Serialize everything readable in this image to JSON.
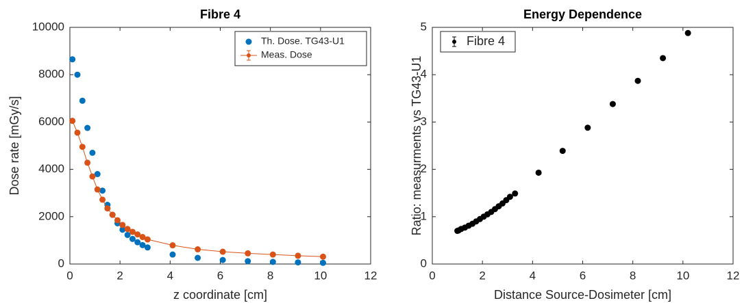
{
  "chart_data": [
    {
      "type": "scatter",
      "title": "Fibre 4",
      "xlabel": "z coordinate [cm]",
      "ylabel": "Dose rate [mGy/s]",
      "xlim": [
        0,
        12
      ],
      "xticks": [
        0,
        2,
        4,
        6,
        8,
        10,
        12
      ],
      "ylim": [
        0,
        10000
      ],
      "yticks": [
        0,
        2000,
        4000,
        6000,
        8000,
        10000
      ],
      "legend": "top-right",
      "series": [
        {
          "name": "Th. Dose. TG43-U1",
          "color": "#0072bd",
          "line": false,
          "x": [
            0.1,
            0.3,
            0.5,
            0.7,
            0.9,
            1.1,
            1.3,
            1.5,
            1.7,
            1.9,
            2.1,
            2.3,
            2.5,
            2.7,
            2.9,
            3.1,
            4.1,
            5.1,
            6.1,
            7.1,
            8.1,
            9.1,
            10.1
          ],
          "values": [
            8650,
            8000,
            6900,
            5750,
            4700,
            3800,
            3100,
            2500,
            2080,
            1720,
            1450,
            1230,
            1060,
            920,
            800,
            700,
            400,
            260,
            170,
            120,
            90,
            70,
            50
          ]
        },
        {
          "name": "Meas. Dose",
          "color": "#d95319",
          "line": true,
          "x": [
            0.1,
            0.3,
            0.5,
            0.7,
            0.9,
            1.1,
            1.3,
            1.5,
            1.7,
            1.9,
            2.1,
            2.3,
            2.5,
            2.7,
            2.9,
            3.1,
            4.1,
            5.1,
            6.1,
            7.1,
            8.1,
            9.1,
            10.1
          ],
          "values": [
            6050,
            5550,
            4950,
            4280,
            3700,
            3150,
            2720,
            2350,
            2080,
            1850,
            1650,
            1480,
            1360,
            1250,
            1140,
            1040,
            790,
            620,
            520,
            450,
            400,
            350,
            310
          ]
        }
      ]
    },
    {
      "type": "scatter",
      "title": "Energy Dependence",
      "xlabel": "Distance Source-Dosimeter [cm]",
      "ylabel": "Ratio: measurments vs TG43-U1",
      "xlim": [
        0,
        12
      ],
      "xticks": [
        0,
        2,
        4,
        6,
        8,
        10,
        12
      ],
      "ylim": [
        0,
        5
      ],
      "yticks": [
        0,
        1,
        2,
        3,
        4,
        5
      ],
      "legend": "top-left",
      "series": [
        {
          "name": "Fibre 4",
          "color": "#000000",
          "line": false,
          "x": [
            1.0,
            1.05,
            1.15,
            1.3,
            1.45,
            1.6,
            1.75,
            1.9,
            2.05,
            2.2,
            2.35,
            2.5,
            2.65,
            2.8,
            2.95,
            3.1,
            3.3,
            4.24,
            5.2,
            6.2,
            7.2,
            8.2,
            9.2,
            10.2
          ],
          "values": [
            0.7,
            0.71,
            0.74,
            0.77,
            0.81,
            0.85,
            0.9,
            0.95,
            1.0,
            1.05,
            1.1,
            1.16,
            1.22,
            1.28,
            1.35,
            1.42,
            1.49,
            1.93,
            2.39,
            2.88,
            3.38,
            3.87,
            4.35,
            4.88
          ]
        }
      ]
    }
  ]
}
